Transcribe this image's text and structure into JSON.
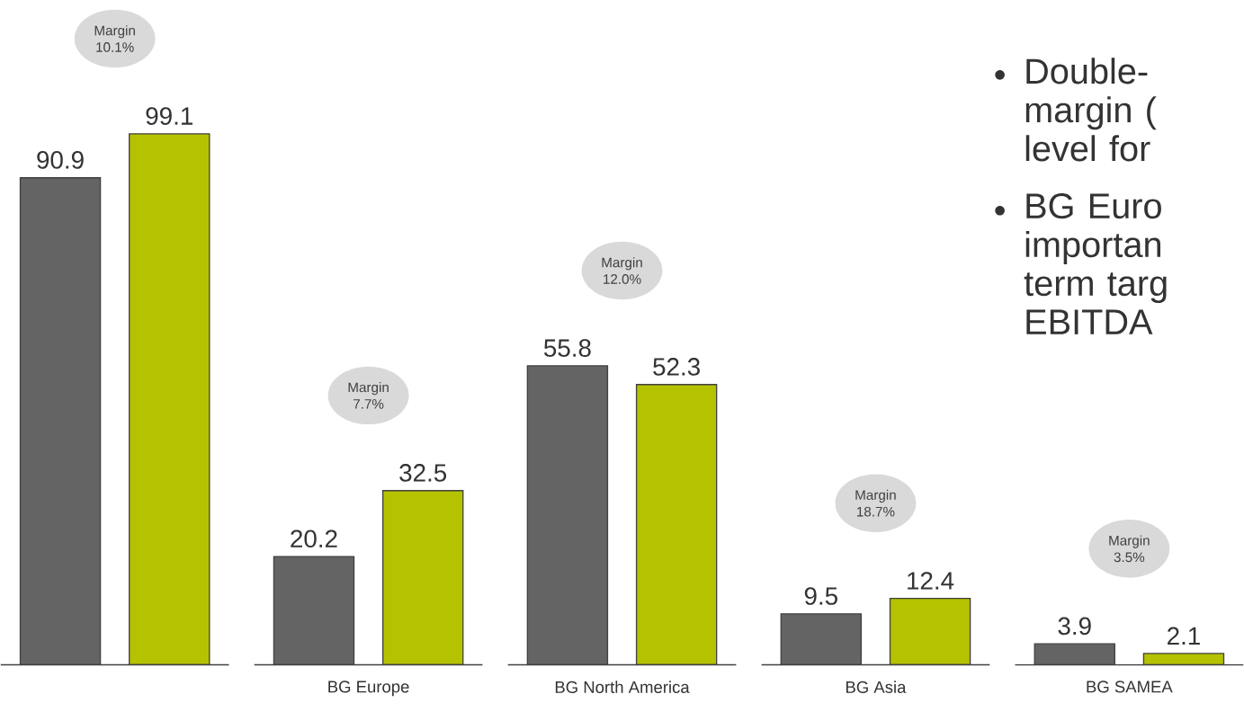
{
  "chart_data": {
    "type": "bar",
    "categories": [
      null,
      "BG Europe",
      "BG North America",
      "BG Asia",
      "BG SAMEA"
    ],
    "series": [
      {
        "color": "#646464",
        "values": [
          90.9,
          20.2,
          55.8,
          9.5,
          3.9
        ]
      },
      {
        "color": "#b5c200",
        "values": [
          99.1,
          32.5,
          52.3,
          12.4,
          2.1
        ]
      }
    ],
    "data_labels": true,
    "annotations": [
      "Margin 10.1%",
      "Margin 7.7%",
      "Margin 12.0%",
      "Margin 18.7%",
      "Margin 3.5%",
      "Double- margin ( level for",
      "BG Euro importan term targ EBITDA"
    ]
  }
}
